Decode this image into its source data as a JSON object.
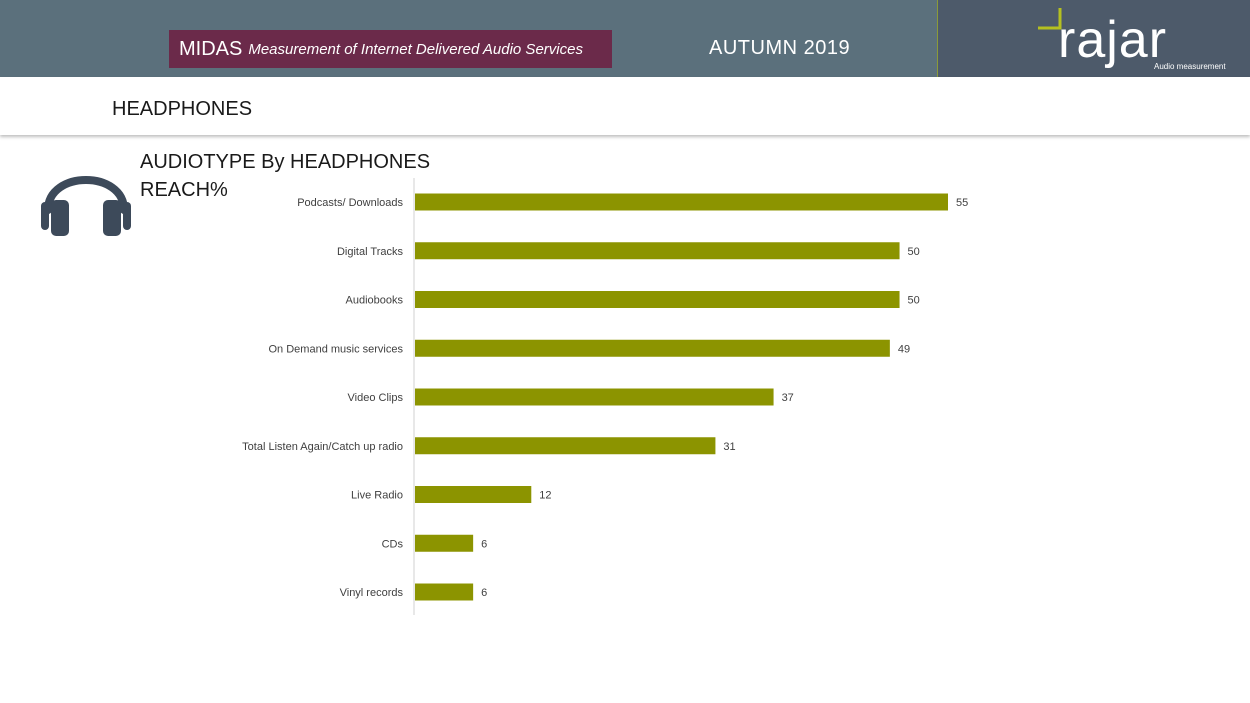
{
  "header": {
    "midas_main": "MIDAS",
    "midas_sub": "Measurement of Internet Delivered Audio Services",
    "period": "AUTUMN 2019",
    "logo_text": "rajar",
    "logo_sub": "Audio measurement"
  },
  "section": {
    "title": "HEADPHONES"
  },
  "icons": {
    "headphones": "headphones-icon"
  },
  "colors": {
    "bar": "#8c9400",
    "topbar": "#5b707c",
    "midas_box": "#6b2a4a",
    "logo_panel": "#4d5a6a"
  },
  "chart_data": {
    "type": "bar",
    "orientation": "horizontal",
    "title": "AUDIOTYPE By HEADPHONES",
    "subtitle": "REACH%",
    "categories": [
      "Podcasts/ Downloads",
      "Digital Tracks",
      "Audiobooks",
      "On Demand music services",
      "Video Clips",
      "Total Listen Again/Catch up radio",
      "Live Radio",
      "CDs",
      "Vinyl records"
    ],
    "values": [
      55,
      50,
      50,
      49,
      37,
      31,
      12,
      6,
      6
    ],
    "xlim": [
      0,
      60
    ],
    "grid": false,
    "legend": "none"
  }
}
